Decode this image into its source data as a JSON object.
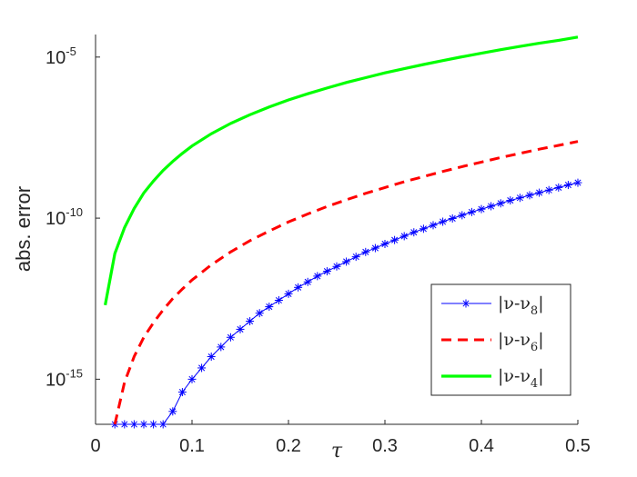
{
  "chart_data": {
    "type": "line",
    "xlabel": "τ",
    "ylabel": "abs. error",
    "yscale": "log",
    "xlim": [
      0,
      0.5
    ],
    "ylim_exp": [
      -16.4,
      -4.3
    ],
    "xticks": [
      "0",
      "0.1",
      "0.2",
      "0.3",
      "0.4",
      "0.5"
    ],
    "xtick_values": [
      0,
      0.1,
      0.2,
      0.3,
      0.4,
      0.5
    ],
    "yticks": [
      {
        "base": "10",
        "exp": "-5",
        "value_exp": -5
      },
      {
        "base": "10",
        "exp": "-10",
        "value_exp": -10
      },
      {
        "base": "10",
        "exp": "-15",
        "value_exp": -15
      }
    ],
    "legend_position": "bottom-right",
    "series": [
      {
        "name": "|ν-ν8|",
        "label_main": "|ν-ν",
        "label_sub": "8",
        "label_end": "|",
        "color": "#0000ff",
        "style": "solid-asterisk",
        "x": [
          0.02,
          0.03,
          0.04,
          0.05,
          0.06,
          0.07,
          0.08,
          0.09,
          0.1,
          0.11,
          0.12,
          0.13,
          0.14,
          0.15,
          0.16,
          0.17,
          0.18,
          0.19,
          0.2,
          0.21,
          0.22,
          0.23,
          0.24,
          0.25,
          0.26,
          0.27,
          0.28,
          0.29,
          0.3,
          0.31,
          0.32,
          0.33,
          0.34,
          0.35,
          0.36,
          0.37,
          0.38,
          0.39,
          0.4,
          0.41,
          0.42,
          0.43,
          0.44,
          0.45,
          0.46,
          0.47,
          0.48,
          0.49,
          0.5
        ],
        "log10_y": [
          -16.4,
          -16.4,
          -16.4,
          -16.4,
          -16.4,
          -16.4,
          -16.0,
          -15.4,
          -15.0,
          -14.65,
          -14.3,
          -14.0,
          -13.7,
          -13.45,
          -13.2,
          -12.95,
          -12.75,
          -12.55,
          -12.35,
          -12.15,
          -11.98,
          -11.8,
          -11.65,
          -11.5,
          -11.35,
          -11.2,
          -11.05,
          -10.93,
          -10.8,
          -10.68,
          -10.56,
          -10.44,
          -10.33,
          -10.22,
          -10.11,
          -10.01,
          -9.91,
          -9.81,
          -9.72,
          -9.63,
          -9.54,
          -9.45,
          -9.37,
          -9.29,
          -9.21,
          -9.13,
          -9.05,
          -8.97,
          -8.9
        ]
      },
      {
        "name": "|ν-ν6|",
        "label_main": "|ν-ν",
        "label_sub": "6",
        "label_end": "|",
        "color": "#ff0000",
        "style": "dashed",
        "x": [
          0.02,
          0.03,
          0.04,
          0.05,
          0.06,
          0.07,
          0.08,
          0.09,
          0.1,
          0.12,
          0.14,
          0.16,
          0.18,
          0.2,
          0.22,
          0.24,
          0.26,
          0.28,
          0.3,
          0.32,
          0.34,
          0.36,
          0.38,
          0.4,
          0.42,
          0.44,
          0.46,
          0.48,
          0.5
        ],
        "log10_y": [
          -16.4,
          -15.1,
          -14.3,
          -13.7,
          -13.25,
          -12.85,
          -12.5,
          -12.2,
          -11.92,
          -11.45,
          -11.05,
          -10.7,
          -10.4,
          -10.12,
          -9.87,
          -9.64,
          -9.43,
          -9.23,
          -9.05,
          -8.87,
          -8.71,
          -8.55,
          -8.4,
          -8.26,
          -8.12,
          -7.99,
          -7.86,
          -7.74,
          -7.62
        ]
      },
      {
        "name": "|ν-ν4|",
        "label_main": "|ν-ν",
        "label_sub": "4",
        "label_end": "|",
        "color": "#00ff00",
        "style": "solid",
        "x": [
          0.01,
          0.02,
          0.03,
          0.04,
          0.05,
          0.06,
          0.07,
          0.08,
          0.09,
          0.1,
          0.12,
          0.14,
          0.16,
          0.18,
          0.2,
          0.22,
          0.24,
          0.26,
          0.28,
          0.3,
          0.32,
          0.34,
          0.36,
          0.38,
          0.4,
          0.42,
          0.44,
          0.46,
          0.48,
          0.5
        ],
        "log10_y": [
          -12.7,
          -11.1,
          -10.3,
          -9.7,
          -9.22,
          -8.85,
          -8.52,
          -8.24,
          -7.99,
          -7.76,
          -7.38,
          -7.06,
          -6.79,
          -6.55,
          -6.33,
          -6.14,
          -5.96,
          -5.79,
          -5.64,
          -5.49,
          -5.36,
          -5.23,
          -5.11,
          -4.99,
          -4.88,
          -4.77,
          -4.67,
          -4.57,
          -4.48,
          -4.38
        ]
      }
    ]
  }
}
